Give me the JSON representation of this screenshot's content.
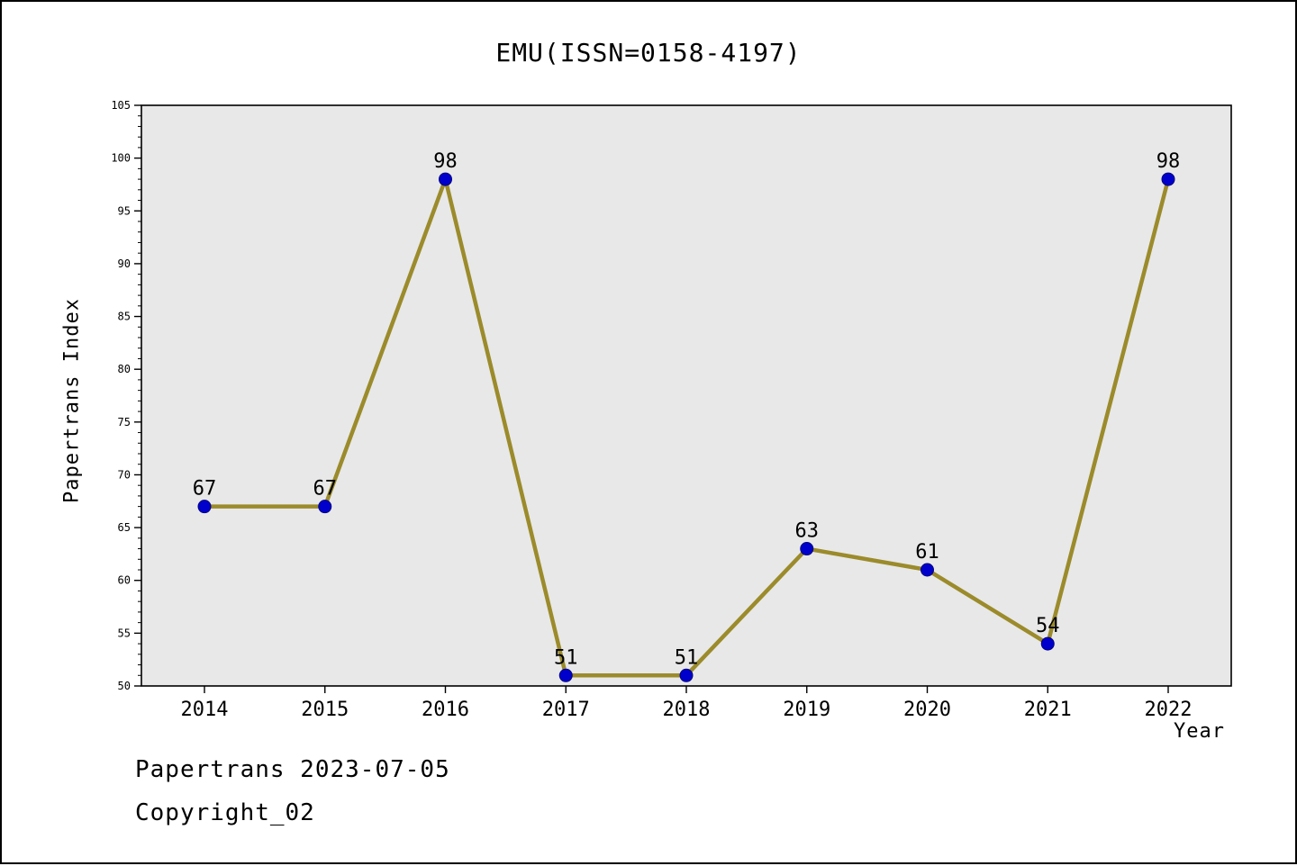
{
  "title": "EMU(ISSN=0158-4197)",
  "footer": {
    "line1": "Papertrans 2023-07-05",
    "line2": "Copyright_02"
  },
  "chart_data": {
    "type": "line",
    "title": "EMU(ISSN=0158-4197)",
    "xlabel": "Year",
    "ylabel": "Papertrans Index",
    "categories": [
      "2014",
      "2015",
      "2016",
      "2017",
      "2018",
      "2019",
      "2020",
      "2021",
      "2022"
    ],
    "values": [
      67,
      67,
      98,
      51,
      51,
      63,
      61,
      54,
      98
    ],
    "ylim": [
      50,
      105
    ],
    "yticks": [
      50,
      55,
      60,
      65,
      70,
      75,
      80,
      85,
      90,
      95,
      100,
      105
    ],
    "yminor_step": 1,
    "grid": false,
    "legend": "none",
    "colors": {
      "line": "#9B8B2B",
      "marker": "#0000CC",
      "marker_edge": "#000080",
      "plot_bg": "#E8E8E8",
      "axis": "#000000",
      "text": "#000000"
    }
  }
}
